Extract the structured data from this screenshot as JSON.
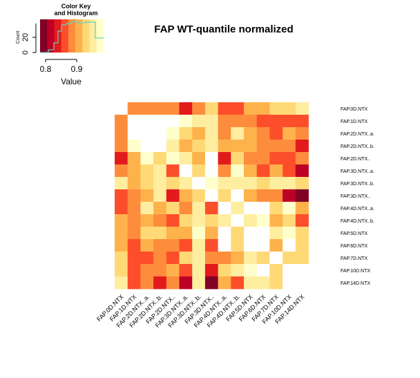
{
  "chart_data": {
    "type": "heatmap",
    "title": "FAP WT-quantile normalized",
    "color_key": {
      "title_line1": "Color Key",
      "title_line2": "and Histogram",
      "xlabel": "Value",
      "ylabel": "Count",
      "x_ticks": [
        "0.8",
        "0.9"
      ],
      "y_ticks": [
        "0",
        "20"
      ],
      "value_range": [
        0.75,
        0.98
      ],
      "histogram_line_color": "#5fd3c4",
      "palette": [
        "#800026",
        "#bd0026",
        "#e31a1c",
        "#fc4e2a",
        "#fd8d3c",
        "#feb24c",
        "#fed976",
        "#ffeda0",
        "#ffffcc"
      ]
    },
    "palette": [
      "#800026",
      "#bd0026",
      "#e31a1c",
      "#fc4e2a",
      "#fd8d3c",
      "#feb24c",
      "#fed976",
      "#ffeda0",
      "#ffffcc",
      "#ffffff"
    ],
    "row_labels": [
      "FAP.0D.NTX",
      "FAP.1D.NTX",
      "FAP.2D.NTX..a.",
      "FAP.2D.NTX..b.",
      "FAP.2D.NTX..",
      "FAP.3D.NTX..a.",
      "FAP.3D.NTX..b.",
      "FAP.3D.NTX..",
      "FAP.4D.NTX..a.",
      "FAP.4D.NTX..b.",
      "FAP.5D.NTX",
      "FAP.6D.NTX",
      "FAP.7D.NTX",
      "FAP.10D.NTX",
      "FAP.14D.NTX"
    ],
    "col_labels": [
      "FAP.0D.NTX",
      "FAP.1D.NTX",
      "FAP.2D.NTX..a.",
      "FAP.2D.NTX..b.",
      "FAP.2D.NTX..",
      "FAP.3D.NTX..a.",
      "FAP.3D.NTX..b.",
      "FAP.3D.NTX..",
      "FAP.4D.NTX..a.",
      "FAP.4D.NTX..b.",
      "FAP.5D.NTX",
      "FAP.6D.NTX",
      "FAP.7D.NTX",
      "FAP.10D.NTX",
      "FAP.14D.NTX"
    ],
    "cell_levels": [
      [
        9,
        4,
        4,
        4,
        4,
        2,
        4,
        6,
        3,
        3,
        5,
        5,
        6,
        6,
        7
      ],
      [
        4,
        9,
        9,
        9,
        9,
        8,
        7,
        7,
        4,
        4,
        4,
        3,
        3,
        3,
        3
      ],
      [
        4,
        9,
        9,
        9,
        8,
        6,
        5,
        7,
        4,
        7,
        5,
        4,
        3,
        5,
        4
      ],
      [
        4,
        8,
        9,
        9,
        7,
        5,
        6,
        7,
        5,
        5,
        5,
        4,
        4,
        4,
        2
      ],
      [
        2,
        5,
        8,
        6,
        8,
        7,
        5,
        9,
        2,
        6,
        4,
        4,
        3,
        3,
        4
      ],
      [
        4,
        5,
        6,
        7,
        3,
        9,
        6,
        9,
        4,
        8,
        5,
        3,
        5,
        3,
        1
      ],
      [
        7,
        5,
        6,
        7,
        6,
        7,
        9,
        8,
        7,
        7,
        7,
        6,
        7,
        7,
        6
      ],
      [
        3,
        4,
        5,
        7,
        2,
        5,
        6,
        9,
        6,
        9,
        5,
        4,
        4,
        1,
        0
      ],
      [
        3,
        4,
        7,
        5,
        6,
        4,
        7,
        3,
        9,
        7,
        9,
        9,
        6,
        8,
        5
      ],
      [
        5,
        4,
        5,
        4,
        3,
        6,
        7,
        6,
        7,
        9,
        7,
        8,
        5,
        6,
        3
      ],
      [
        5,
        4,
        6,
        6,
        5,
        5,
        8,
        5,
        9,
        6,
        9,
        9,
        7,
        8,
        6
      ],
      [
        5,
        3,
        5,
        4,
        4,
        3,
        7,
        3,
        9,
        6,
        9,
        9,
        5,
        9,
        6
      ],
      [
        6,
        3,
        3,
        4,
        3,
        6,
        7,
        4,
        4,
        5,
        7,
        6,
        9,
        6,
        6
      ],
      [
        6,
        3,
        4,
        4,
        5,
        3,
        7,
        2,
        6,
        7,
        8,
        9,
        6,
        9,
        9
      ],
      [
        7,
        3,
        4,
        2,
        4,
        1,
        7,
        0,
        5,
        3,
        7,
        7,
        6,
        9,
        9
      ]
    ]
  }
}
